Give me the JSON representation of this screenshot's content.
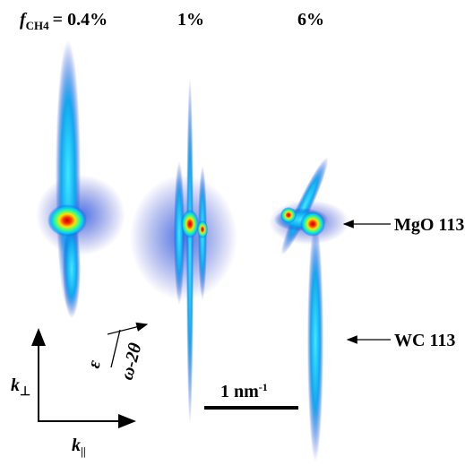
{
  "header": {
    "f_symbol": "f",
    "f_subscript": "CH4",
    "panel_labels": [
      "= 0.4%",
      "1%",
      "6%"
    ]
  },
  "annotations": [
    "MgO 113",
    "WC 113"
  ],
  "scale_bar": {
    "text": "1 nm",
    "superscript": "-1"
  },
  "axes": {
    "k": "k",
    "perp": "⊥",
    "par": "||",
    "epsilon": "ε",
    "omega": "ω-2θ"
  }
}
